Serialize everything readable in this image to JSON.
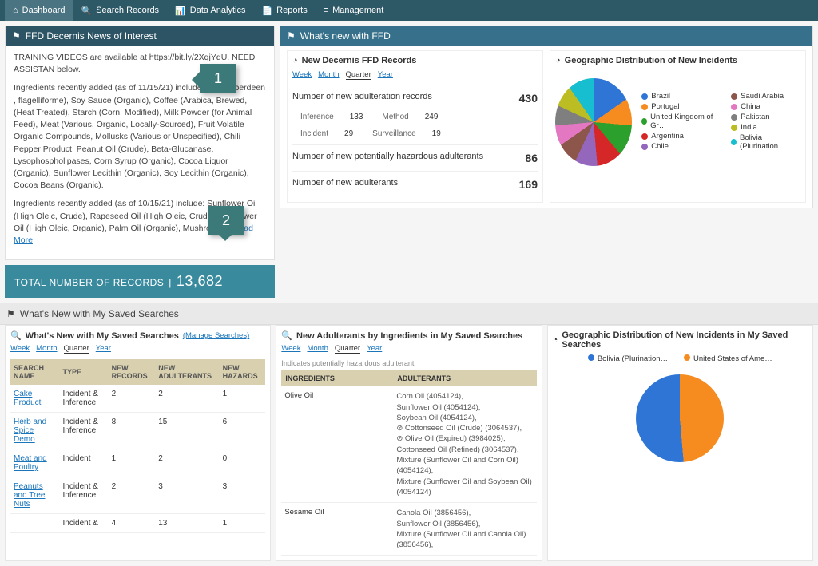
{
  "nav": {
    "items": [
      {
        "icon": "⌂",
        "label": "Dashboard",
        "active": true
      },
      {
        "icon": "🔍",
        "label": "Search Records"
      },
      {
        "icon": "📊",
        "label": "Data Analytics"
      },
      {
        "icon": "📄",
        "label": "Reports"
      },
      {
        "icon": "≡",
        "label": "Management"
      }
    ]
  },
  "callouts": {
    "one": "1",
    "two": "2"
  },
  "news": {
    "title": "FFD Decernis News of Interest",
    "para1": "TRAINING VIDEOS are available at https://bit.ly/2XqjYdU. NEED ASSISTAN below.",
    "para2": "Ingredients recently added (as of 11/15/21) include: Beef (Aberdeen           , flagelliforme), Soy Sauce (Organic), Coffee (Arabica, Brewed,       (Heat Treated), Starch (Corn, Modified), Milk Powder (for Animal Feed), Meat (Various, Organic, Locally-Sourced), Fruit Volatile Organic Compounds, Mollusks (Various or Unspecified), Chili Pepper Product, Peanut Oil (Crude), Beta-Glucanase, Lysophospholipases, Corn Syrup (Organic), Cocoa Liquor (Organic), Sunflower Lecithin (Organic), Soy Lecithin (Organic), Cocoa Beans (Organic).",
    "para3": "Ingredients recently added (as of 10/15/21) include: Sunflower Oil (High Oleic, Crude), Rapeseed Oil (High Oleic, Crude), Sunflower Oil (High Oleic, Organic), Palm Oil (Organic), Mushroom…",
    "readmore": "Read More"
  },
  "total": {
    "label": "TOTAL NUMBER OF RECORDS",
    "value": "13,682"
  },
  "whatsnew": {
    "title": "What's new with FFD",
    "records_title": "New Decernis FFD Records",
    "timerange": [
      "Week",
      "Month",
      "Quarter",
      "Year"
    ],
    "active_range": "Quarter",
    "rows": [
      {
        "label": "Number of new adulteration records",
        "value": "430"
      },
      {
        "label": "Number of new potentially hazardous adulterants",
        "value": "86"
      },
      {
        "label": "Number of new adulterants",
        "value": "169"
      }
    ],
    "subs": [
      {
        "label": "Inference",
        "v": "133"
      },
      {
        "label": "Method",
        "v": "249"
      },
      {
        "label": "Incident",
        "v": "29"
      },
      {
        "label": "Surveillance",
        "v": "19"
      }
    ],
    "geo_title": "Geographic Distribution of New Incidents",
    "geo_colors": {
      "Brazil": "#2e75d6",
      "Portugal": "#f68b1f",
      "United Kingdom of Gr…": "#2ca02c",
      "Argentina": "#d62728",
      "Chile": "#9467bd",
      "Saudi Arabia": "#8c564b",
      "China": "#e377c2",
      "Pakistan": "#7f7f7f",
      "India": "#bcbd22",
      "Bolivia (Plurination…": "#17becf"
    },
    "pie_gradient": "conic-gradient(#2e75d6 0 55deg,#f68b1f 55deg 95deg,#2ca02c 95deg 140deg,#d62728 140deg 175deg,#9467bd 175deg 205deg,#8c564b 205deg 235deg,#e377c2 235deg 265deg,#7f7f7f 265deg 295deg,#bcbd22 295deg 325deg,#17becf 325deg 360deg)"
  },
  "savedSection": {
    "title": "What's New with My Saved Searches"
  },
  "mySearches": {
    "title": "What's New with My Saved Searches",
    "manage": "(Manage Searches)",
    "timerange": [
      "Week",
      "Month",
      "Quarter",
      "Year"
    ],
    "active_range": "Quarter",
    "cols": [
      "SEARCH NAME",
      "TYPE",
      "NEW RECORDS",
      "NEW ADULTERANTS",
      "NEW HAZARDS"
    ],
    "rows": [
      {
        "name": "Cake Product",
        "type": "Incident & Inference",
        "r": "2",
        "a": "2",
        "h": "1"
      },
      {
        "name": "Herb and Spice Demo",
        "type": "Incident & Inference",
        "r": "8",
        "a": "15",
        "h": "6"
      },
      {
        "name": "Meat and Poultry",
        "type": "Incident",
        "r": "1",
        "a": "2",
        "h": "0"
      },
      {
        "name": "Peanuts and Tree Nuts",
        "type": "Incident & Inference",
        "r": "2",
        "a": "3",
        "h": "3"
      },
      {
        "name": "",
        "type": "Incident &",
        "r": "4",
        "a": "13",
        "h": "1"
      }
    ]
  },
  "adulterants": {
    "title": "New Adulterants by Ingredients in My Saved Searches",
    "note": "Indicates potentially hazardous adulterant",
    "timerange": [
      "Week",
      "Month",
      "Quarter",
      "Year"
    ],
    "active_range": "Quarter",
    "cols": [
      "INGREDIENTS",
      "ADULTERANTS"
    ],
    "rows": [
      {
        "ing": "Olive Oil",
        "ads": "Corn Oil (4054124), Sunflower Oil (4054124), Soybean Oil (4054124), ⊘ Cottonseed Oil (Crude) (3064537), ⊘ Olive Oil (Expired) (3984025), Cottonseed Oil (Refined) (3064537), Mixture (Sunflower Oil and Corn Oil) (4054124), Mixture (Sunflower Oil and Soybean Oil) (4054124)"
      },
      {
        "ing": "Sesame Oil",
        "ads": "Canola Oil (3856456), Sunflower Oil (3856456), Mixture (Sunflower Oil and Canola Oil) (3856456),"
      }
    ]
  },
  "geoSaved": {
    "title": "Geographic Distribution of New Incidents in My Saved Searches",
    "legend": {
      "Bolivia (Plurination…": "#2e75d6",
      "United States of Ame…": "#f68b1f"
    },
    "pie_gradient": "conic-gradient(#f68b1f 0 175deg,#2e75d6 175deg 360deg)"
  }
}
